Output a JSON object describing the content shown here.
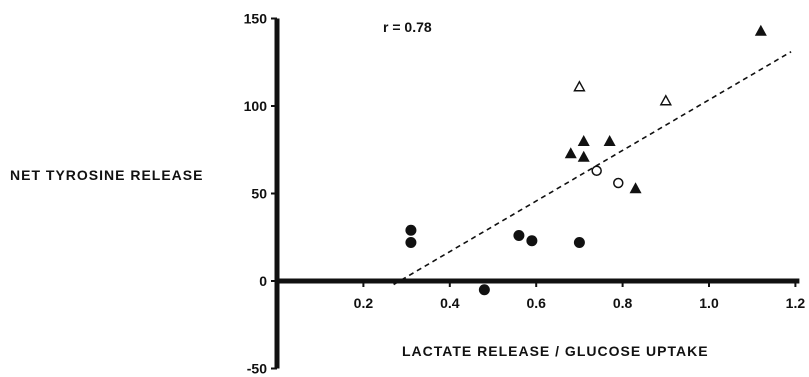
{
  "chart_data": {
    "type": "scatter",
    "title": "",
    "xlabel": "LACTATE RELEASE / GLUCOSE UPTAKE",
    "ylabel": "NET TYROSINE RELEASE",
    "annotation": "r = 0.78",
    "xlim": [
      0.0,
      1.2
    ],
    "ylim": [
      -50,
      150
    ],
    "x_ticks": [
      0.2,
      0.4,
      0.6,
      0.8,
      1.0,
      1.2
    ],
    "x_tick_labels": [
      "0.2",
      "0.4",
      "0.6",
      "0.8",
      "1.0",
      "1.2"
    ],
    "y_ticks": [
      -50,
      0,
      50,
      100,
      150
    ],
    "y_tick_labels": [
      "-50",
      "0",
      "50",
      "100",
      "150"
    ],
    "grid": false,
    "series": [
      {
        "marker": "filled-circle",
        "color": "#111111",
        "points": [
          {
            "x": 0.31,
            "y": 29
          },
          {
            "x": 0.31,
            "y": 22
          },
          {
            "x": 0.48,
            "y": -5
          },
          {
            "x": 0.56,
            "y": 26
          },
          {
            "x": 0.59,
            "y": 23
          },
          {
            "x": 0.7,
            "y": 22
          }
        ]
      },
      {
        "marker": "open-circle",
        "color": "#111111",
        "points": [
          {
            "x": 0.74,
            "y": 63
          },
          {
            "x": 0.79,
            "y": 56
          }
        ]
      },
      {
        "marker": "filled-triangle",
        "color": "#111111",
        "points": [
          {
            "x": 0.68,
            "y": 73
          },
          {
            "x": 0.71,
            "y": 80
          },
          {
            "x": 0.71,
            "y": 71
          },
          {
            "x": 0.77,
            "y": 80
          },
          {
            "x": 0.83,
            "y": 53
          },
          {
            "x": 1.12,
            "y": 143
          }
        ]
      },
      {
        "marker": "open-triangle",
        "color": "#111111",
        "points": [
          {
            "x": 0.7,
            "y": 111
          },
          {
            "x": 0.9,
            "y": 103
          }
        ]
      }
    ],
    "regression_line": {
      "style": "dashed",
      "from": {
        "x": 0.27,
        "y": -2
      },
      "to": {
        "x": 1.19,
        "y": 131
      }
    }
  }
}
